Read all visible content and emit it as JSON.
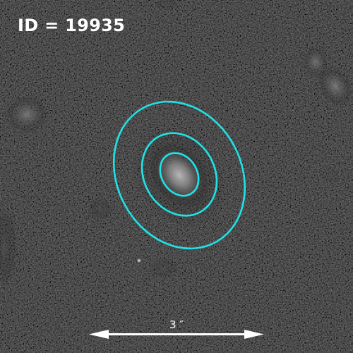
{
  "header": {
    "id_label": "ID = 19935"
  },
  "scale_bar": {
    "label": "3 ″"
  },
  "colors": {
    "background": "#000000",
    "contour": "#1fe3e8",
    "text": "#ffffff"
  }
}
